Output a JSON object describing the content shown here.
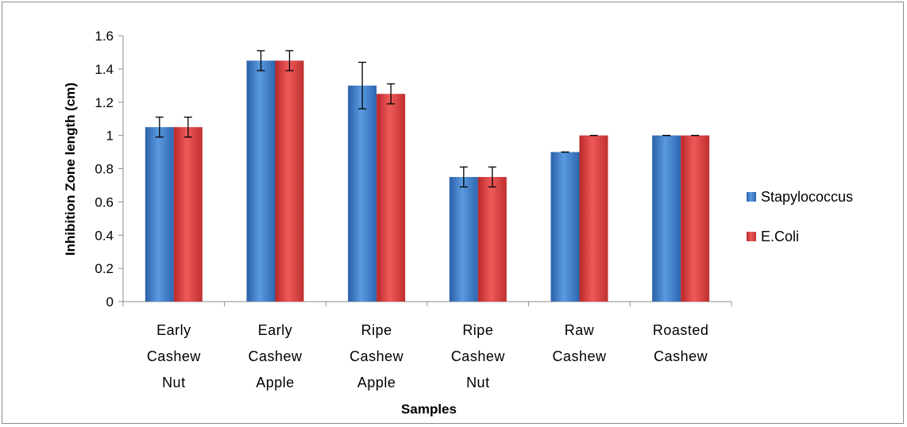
{
  "chart_data": {
    "type": "bar",
    "categories": [
      [
        "Early",
        "Cashew",
        "Nut"
      ],
      [
        "Early",
        "Cashew",
        "Apple"
      ],
      [
        "Ripe",
        "Cashew",
        "Apple"
      ],
      [
        "Ripe",
        "Cashew",
        "Nut"
      ],
      [
        "Raw",
        "Cashew"
      ],
      [
        "Roasted",
        "Cashew"
      ]
    ],
    "series": [
      {
        "name": "Stapylococcus",
        "color": "#3a78c8",
        "values": [
          1.05,
          1.45,
          1.3,
          0.75,
          0.9,
          1.0
        ],
        "errors": [
          0.06,
          0.06,
          0.14,
          0.06,
          0,
          0
        ]
      },
      {
        "name": "E.Coli",
        "color": "#d63b3b",
        "values": [
          1.05,
          1.45,
          1.25,
          0.75,
          1.0,
          1.0
        ],
        "errors": [
          0.06,
          0.06,
          0.06,
          0.06,
          0,
          0
        ]
      }
    ],
    "xlabel": "Samples",
    "ylabel": "Inhibition Zone length (cm)",
    "ylim": [
      0,
      1.6
    ],
    "yticks": [
      "0",
      "0.2",
      "0.4",
      "0.6",
      "0.8",
      "1",
      "1.2",
      "1.4",
      "1.6"
    ],
    "grid": false,
    "legend_position": "right"
  }
}
